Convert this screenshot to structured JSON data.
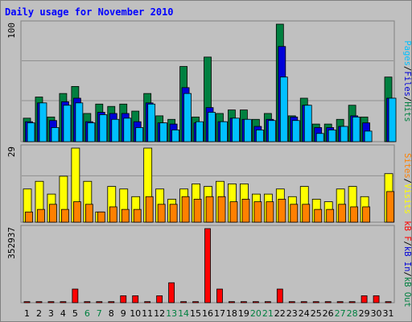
{
  "colors": {
    "background": "#c0c0c0",
    "hits": "#008040",
    "files": "#0000d8",
    "pages": "#00c0ff",
    "visits": "#ffff00",
    "sites": "#ff8000",
    "kb_in": "#0000d8",
    "kb_out": "#008040",
    "kb_f": "#ff0000",
    "title": "#0000ff"
  },
  "chart_data": {
    "type": "bar",
    "title": "Daily usage for November 2010",
    "categories": [
      "1",
      "2",
      "3",
      "4",
      "5",
      "6",
      "7",
      "8",
      "9",
      "10",
      "11",
      "12",
      "13",
      "14",
      "15",
      "16",
      "17",
      "18",
      "19",
      "20",
      "21",
      "22",
      "23",
      "24",
      "25",
      "26",
      "27",
      "28",
      "29",
      "30",
      "31"
    ],
    "weekend_days": [
      "6",
      "7",
      "13",
      "14",
      "20",
      "21",
      "27",
      "28"
    ],
    "panels": [
      {
        "id": "hits_files_pages",
        "y_max_label": "100",
        "ylim": [
          0,
          100
        ],
        "legend": [
          {
            "name": "Pages",
            "color": "#00c0ff"
          },
          {
            "name": "/",
            "color": "#000000"
          },
          {
            "name": "Files",
            "color": "#0000d8"
          },
          {
            "name": "/",
            "color": "#000000"
          },
          {
            "name": "Hits",
            "color": "#008040"
          }
        ],
        "series": [
          {
            "name": "Hits",
            "color": "#008040",
            "values": [
              20,
              38,
              21,
              41,
              47,
              24,
              32,
              30,
              32,
              26,
              41,
              22,
              19,
              64,
              21,
              72,
              24,
              27,
              27,
              19,
              24,
              100,
              22,
              37,
              15,
              15,
              19,
              31,
              21,
              0,
              55
            ]
          },
          {
            "name": "Files",
            "color": "#0000d8",
            "values": [
              17,
              33,
              18,
              34,
              37,
              17,
              25,
              24,
              24,
              17,
              33,
              16,
              15,
              46,
              16,
              29,
              17,
              20,
              19,
              13,
              19,
              81,
              21,
              31,
              12,
              12,
              13,
              22,
              16,
              0,
              37
            ]
          },
          {
            "name": "Pages",
            "color": "#00c0ff",
            "values": [
              16,
              33,
              12,
              31,
              33,
              16,
              23,
              19,
              20,
              12,
              32,
              16,
              10,
              41,
              17,
              25,
              17,
              20,
              19,
              10,
              18,
              55,
              18,
              31,
              7,
              10,
              13,
              21,
              9,
              0,
              37
            ]
          }
        ]
      },
      {
        "id": "visits_sites",
        "y_max_label": "29",
        "ylim": [
          0,
          29
        ],
        "legend": [
          {
            "name": "Sites",
            "color": "#ff8000"
          },
          {
            "name": "/",
            "color": "#000000"
          },
          {
            "name": "Visits",
            "color": "#ffff00"
          }
        ],
        "series": [
          {
            "name": "Visits",
            "color": "#ffff00",
            "values": [
              13,
              16,
              11,
              18,
              29,
              16,
              4,
              14,
              13,
              10,
              29,
              13,
              9,
              13,
              15,
              14,
              16,
              15,
              15,
              11,
              11,
              13,
              10,
              14,
              9,
              8,
              13,
              14,
              10,
              0,
              19
            ]
          },
          {
            "name": "Sites",
            "color": "#ff8000",
            "values": [
              4,
              5,
              7,
              5,
              8,
              7,
              4,
              6,
              5,
              5,
              10,
              7,
              7,
              10,
              9,
              10,
              10,
              8,
              9,
              8,
              8,
              9,
              7,
              7,
              5,
              5,
              7,
              6,
              6,
              0,
              12
            ]
          }
        ]
      },
      {
        "id": "kb",
        "y_max_label": "352937",
        "ylim": [
          0,
          352937
        ],
        "legend": [
          {
            "name": "kB F",
            "color": "#ff0000"
          },
          {
            "name": "/",
            "color": "#000000"
          },
          {
            "name": "kB In",
            "color": "#0000d8"
          },
          {
            "name": "/",
            "color": "#000000"
          },
          {
            "name": "kB Out",
            "color": "#008040"
          }
        ],
        "series": [
          {
            "name": "kB F",
            "color": "#ff0000",
            "values": [
              5000,
              5000,
              5000,
              5000,
              65000,
              5000,
              5000,
              5000,
              33000,
              33000,
              5000,
              33000,
              95000,
              5000,
              5000,
              352937,
              65000,
              5000,
              5000,
              5000,
              5000,
              65000,
              5000,
              5000,
              5000,
              5000,
              5000,
              5000,
              33000,
              33000,
              5000
            ]
          }
        ]
      }
    ]
  }
}
